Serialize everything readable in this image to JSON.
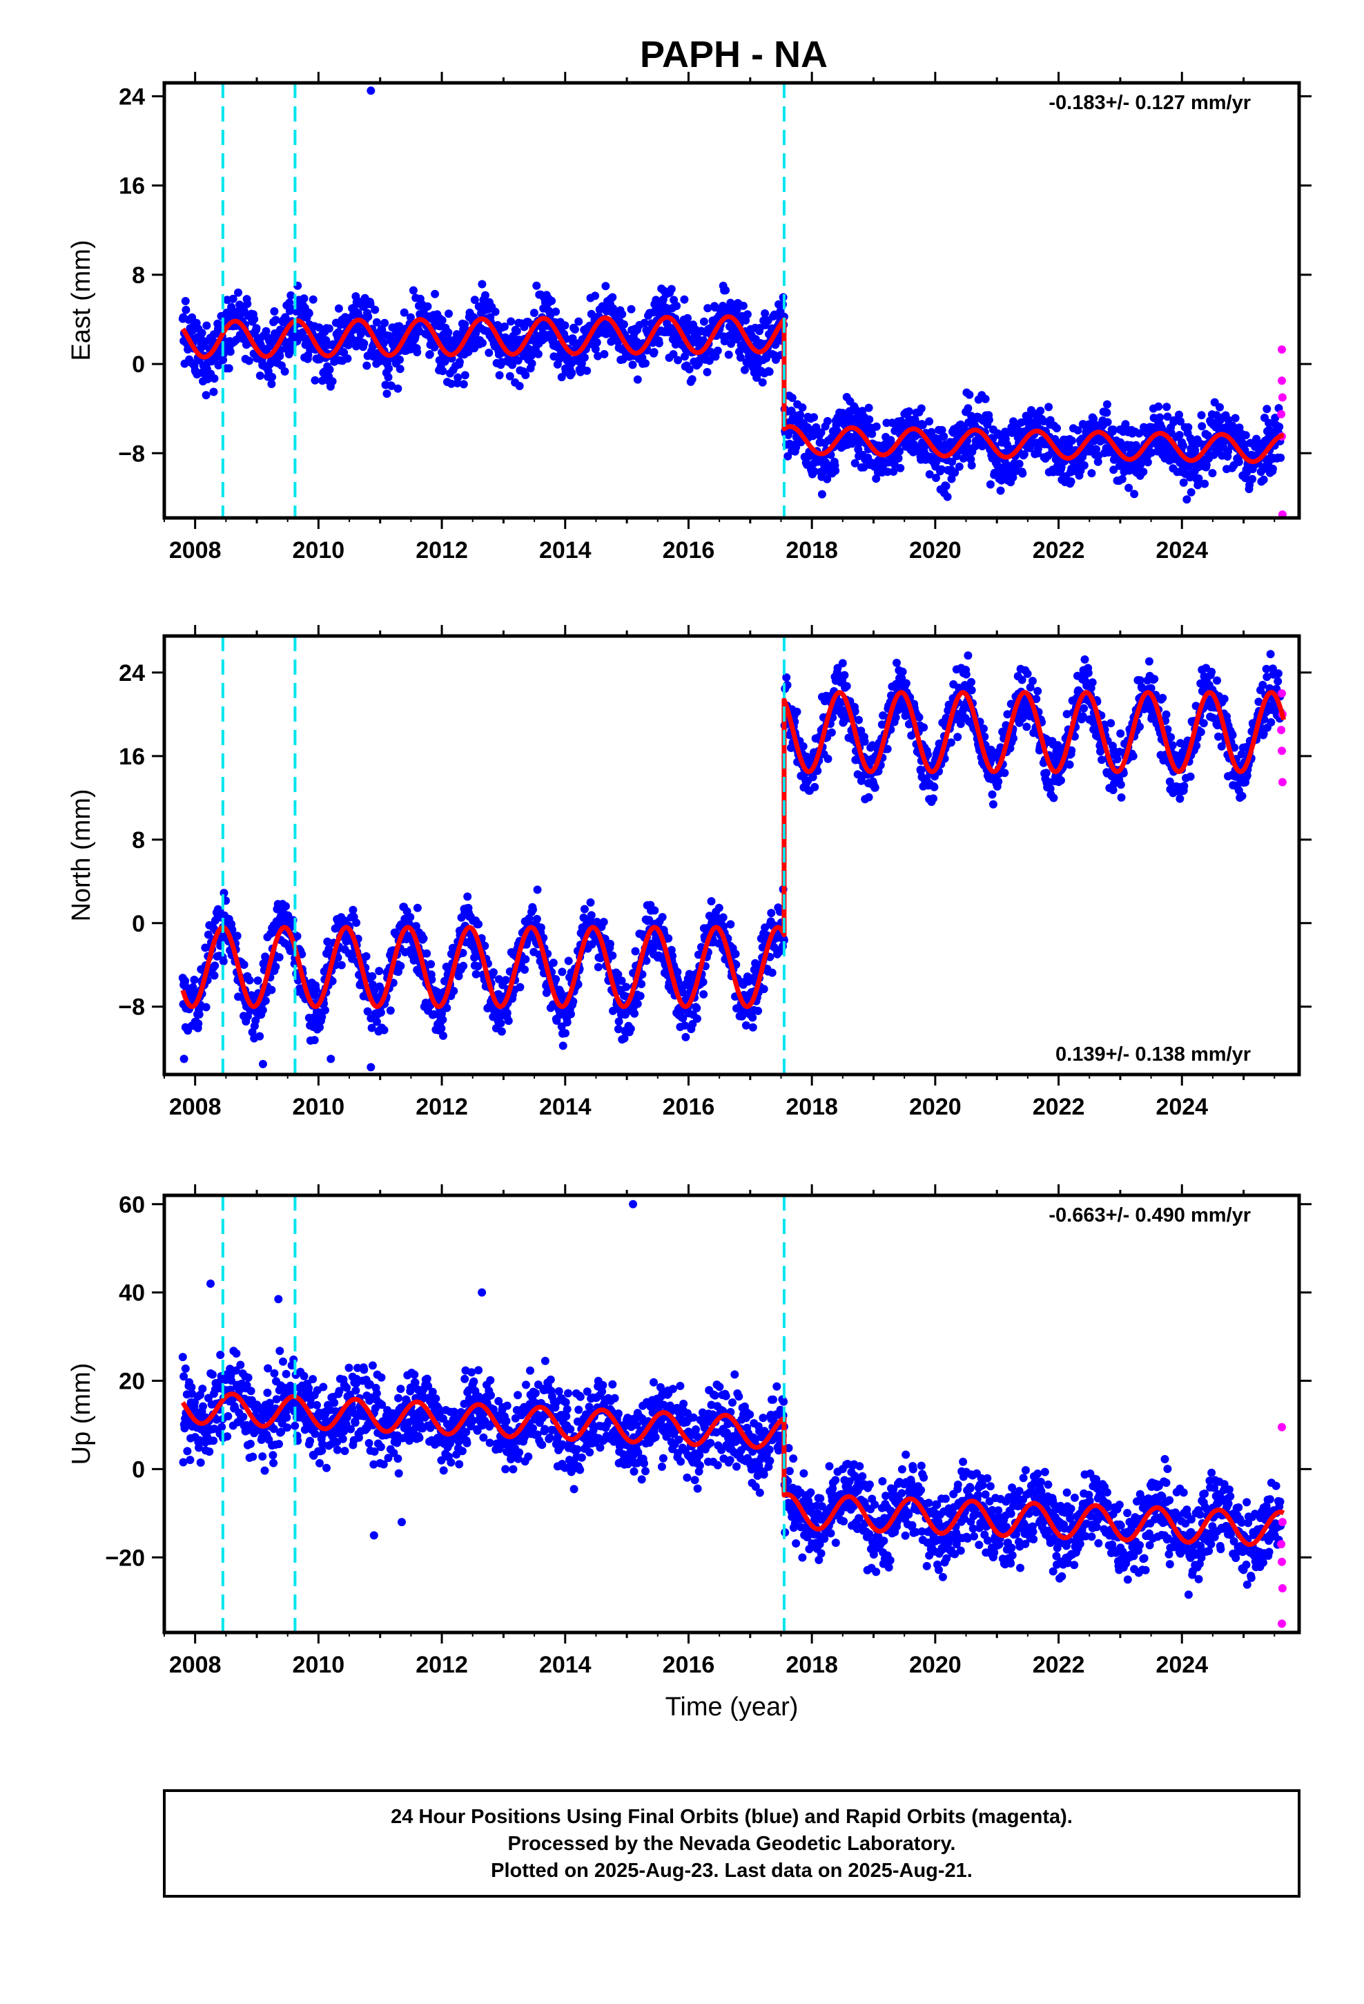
{
  "title": "PAPH - NA",
  "xlabel": "Time (year)",
  "footer": [
    "24 Hour Positions Using Final Orbits (blue) and Rapid Orbits (magenta).",
    "Processed by the Nevada Geodetic Laboratory.",
    "Plotted on 2025-Aug-23. Last data on 2025-Aug-21."
  ],
  "colors": {
    "final": "#0000ff",
    "rapid": "#ff00ff",
    "model": "#ff0000",
    "event": "#00e5ee",
    "frame": "#000000"
  },
  "chart_data": [
    {
      "type": "scatter",
      "ylabel": "East (mm)",
      "rate": "-0.183+/- 0.127 mm/yr",
      "rate_position": "top-right",
      "xlim": [
        2007.5,
        2025.9
      ],
      "ylim": [
        -13.8,
        25.2
      ],
      "xticks": [
        2008,
        2010,
        2012,
        2014,
        2016,
        2018,
        2020,
        2022,
        2024
      ],
      "yticks": [
        24,
        16,
        8,
        0,
        -8
      ],
      "event_lines": [
        2008.45,
        2009.62,
        2017.55
      ],
      "model": {
        "start": 2007.8,
        "end": 2025.65,
        "step_at": 2017.55,
        "before": {
          "offset": 2.2,
          "trend": 0.05,
          "amplitude": 1.6,
          "phase_year": 2008.65
        },
        "after": {
          "offset": -6.8,
          "trend": -0.1,
          "amplitude": 1.2,
          "phase_year": 2018.65
        }
      },
      "scatter_spread": 1.4,
      "outliers": [
        [
          2010.85,
          24.5
        ],
        [
          2008.3,
          -2.5
        ],
        [
          2024.15,
          -11.5
        ]
      ],
      "rapid_points": [
        [
          2025.62,
          1.3
        ],
        [
          2025.62,
          -1.5
        ],
        [
          2025.63,
          -3.0
        ],
        [
          2025.61,
          -4.5
        ],
        [
          2025.62,
          -6.5
        ],
        [
          2025.63,
          -13.5
        ]
      ]
    },
    {
      "type": "scatter",
      "ylabel": "North (mm)",
      "rate": "0.139+/- 0.138 mm/yr",
      "rate_position": "bottom-right",
      "xlim": [
        2007.5,
        2025.9
      ],
      "ylim": [
        -14.5,
        27.5
      ],
      "xticks": [
        2008,
        2010,
        2012,
        2014,
        2016,
        2018,
        2020,
        2022,
        2024
      ],
      "yticks": [
        24,
        16,
        8,
        0,
        -8
      ],
      "event_lines": [
        2008.45,
        2009.62,
        2017.55
      ],
      "model": {
        "start": 2007.8,
        "end": 2025.65,
        "step_at": 2017.55,
        "before": {
          "offset": -4.2,
          "trend": 0.0,
          "amplitude": 3.8,
          "phase_year": 2008.45
        },
        "after": {
          "offset": 18.3,
          "trend": 0.0,
          "amplitude": 3.8,
          "phase_year": 2018.45
        }
      },
      "scatter_spread": 1.5,
      "outliers": [
        [
          2007.82,
          -13.0
        ],
        [
          2009.1,
          -13.5
        ],
        [
          2010.2,
          -13.0
        ],
        [
          2010.85,
          -13.8
        ],
        [
          2013.55,
          3.2
        ]
      ],
      "rapid_points": [
        [
          2025.62,
          22.0
        ],
        [
          2025.63,
          20.0
        ],
        [
          2025.61,
          18.5
        ],
        [
          2025.62,
          16.5
        ],
        [
          2025.63,
          13.5
        ]
      ]
    },
    {
      "type": "scatter",
      "ylabel": "Up (mm)",
      "rate": "-0.663+/- 0.490 mm/yr",
      "rate_position": "top-right",
      "xlim": [
        2007.5,
        2025.9
      ],
      "ylim": [
        -37,
        62
      ],
      "xticks": [
        2008,
        2010,
        2012,
        2014,
        2016,
        2018,
        2020,
        2022,
        2024
      ],
      "yticks": [
        60,
        40,
        20,
        0,
        -20
      ],
      "event_lines": [
        2008.45,
        2009.62,
        2017.55
      ],
      "model": {
        "start": 2007.8,
        "end": 2025.65,
        "step_at": 2017.55,
        "before": {
          "offset": 14.0,
          "trend": -0.6,
          "amplitude": 3.5,
          "phase_year": 2008.6
        },
        "after": {
          "offset": -9.5,
          "trend": -0.5,
          "amplitude": 3.8,
          "phase_year": 2018.6
        }
      },
      "scatter_spread": 4.5,
      "outliers": [
        [
          2015.1,
          60.0
        ],
        [
          2008.25,
          42.0
        ],
        [
          2009.35,
          38.5
        ],
        [
          2012.65,
          40.0
        ],
        [
          2010.9,
          -15.0
        ],
        [
          2011.35,
          -12.0
        ]
      ],
      "rapid_points": [
        [
          2025.62,
          9.5
        ],
        [
          2025.63,
          -12.0
        ],
        [
          2025.61,
          -17.0
        ],
        [
          2025.62,
          -21.0
        ],
        [
          2025.63,
          -27.0
        ],
        [
          2025.62,
          -35.0
        ]
      ]
    }
  ]
}
